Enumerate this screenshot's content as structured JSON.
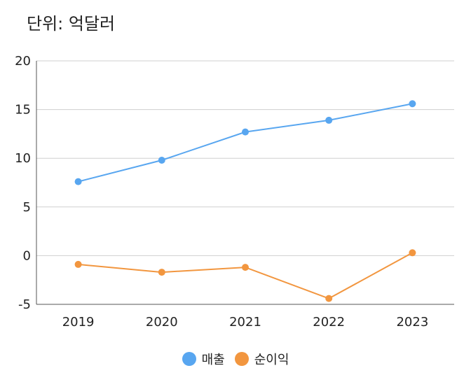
{
  "unit_label": "단위: 억달러",
  "chart_data": {
    "type": "line",
    "x": [
      "2019",
      "2020",
      "2021",
      "2022",
      "2023"
    ],
    "ylim": [
      -5,
      20
    ],
    "yticks": [
      20,
      15,
      10,
      5,
      0,
      -5
    ],
    "grid": true,
    "legend_position": "bottom",
    "series": [
      {
        "name": "매출",
        "color": "#58A6F0",
        "values": [
          7.6,
          9.8,
          12.7,
          13.9,
          15.6
        ]
      },
      {
        "name": "순이익",
        "color": "#F2963F",
        "values": [
          -0.9,
          -1.7,
          -1.2,
          -4.4,
          0.3
        ]
      }
    ]
  }
}
